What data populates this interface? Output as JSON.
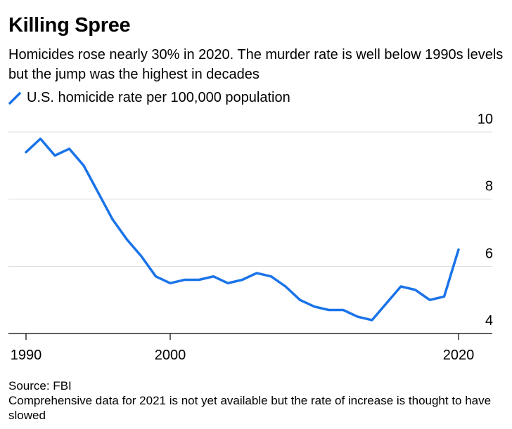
{
  "title": "Killing Spree",
  "subtitle": "Homicides rose nearly 30% in 2020. The murder rate is well below 1990s levels but the jump was the highest in decades",
  "legend_label": "U.S. homicide rate per 100,000 population",
  "source": "Source: FBI",
  "note": "Comprehensive data for 2021 is not yet available but the rate of increase is thought to have slowed",
  "colors": {
    "line": "#1a73e8",
    "grid": "#dcdcdc",
    "axis": "#000000"
  },
  "chart_data": {
    "type": "line",
    "title": "Killing Spree",
    "xlabel": "",
    "ylabel": "",
    "xlim": [
      1989.5,
      2022.5
    ],
    "ylim": [
      4,
      10
    ],
    "x_ticks": [
      1990,
      2000,
      2020
    ],
    "y_ticks": [
      4,
      6,
      8,
      10
    ],
    "grid": true,
    "y_axis_position": "right",
    "legend_position": "top-left",
    "series": [
      {
        "name": "U.S. homicide rate per 100,000 population",
        "x": [
          1990,
          1991,
          1992,
          1993,
          1994,
          1995,
          1996,
          1997,
          1998,
          1999,
          2000,
          2001,
          2002,
          2003,
          2004,
          2005,
          2006,
          2007,
          2008,
          2009,
          2010,
          2011,
          2012,
          2013,
          2014,
          2015,
          2016,
          2017,
          2018,
          2019,
          2020
        ],
        "values": [
          9.4,
          9.8,
          9.3,
          9.5,
          9.0,
          8.2,
          7.4,
          6.8,
          6.3,
          5.7,
          5.5,
          5.6,
          5.6,
          5.7,
          5.5,
          5.6,
          5.8,
          5.7,
          5.4,
          5.0,
          4.8,
          4.7,
          4.7,
          4.5,
          4.4,
          4.9,
          5.4,
          5.3,
          5.0,
          5.1,
          6.5
        ]
      }
    ]
  }
}
